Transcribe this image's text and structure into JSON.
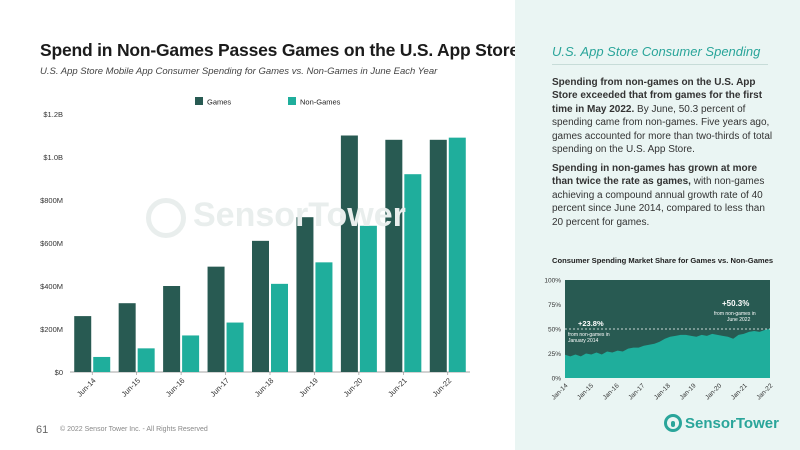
{
  "slide": {
    "title": "Spend in Non-Games Passes Games on the U.S. App Store",
    "subtitle": "U.S. App Store Mobile App Consumer Spending for Games vs. Non-Games in June Each Year",
    "page_number": "61",
    "copyright": "© 2022 Sensor Tower Inc. - All Rights Reserved",
    "watermark": "SensorTower",
    "logo_text": "SensorTower"
  },
  "sidebar": {
    "heading": "U.S. App Store Consumer Spending",
    "p1_bold": "Spending from non-games on the U.S. App Store exceeded that from games for the first time in May 2022.",
    "p1_rest": " By June, 50.3 percent of spending came from non-games. Five years ago, games accounted for more than two-thirds of total spending on the U.S. App Store.",
    "p2_bold": "Spending in non-games has grown at more than twice the rate as games,",
    "p2_rest": " with non-games achieving a compound annual growth rate of 40 percent since June 2014, compared to less than 20 percent for games."
  },
  "colors": {
    "games": "#285a52",
    "non_games": "#1fae9c",
    "mini_bg": "#285a52",
    "mini_area": "#1fae9c",
    "accent": "#2aa59a"
  },
  "chart_data": [
    {
      "type": "bar",
      "title": "Spend in Non-Games Passes Games on the U.S. App Store",
      "categories": [
        "Jun-14",
        "Jun-15",
        "Jun-16",
        "Jun-17",
        "Jun-18",
        "Jun-19",
        "Jun-20",
        "Jun-21",
        "Jun-22"
      ],
      "series": [
        {
          "name": "Games",
          "values": [
            0.26,
            0.32,
            0.4,
            0.49,
            0.61,
            0.72,
            1.1,
            1.08,
            1.08
          ]
        },
        {
          "name": "Non-Games",
          "values": [
            0.07,
            0.11,
            0.17,
            0.23,
            0.41,
            0.51,
            0.68,
            0.92,
            1.09
          ]
        }
      ],
      "unit": "USD billions",
      "ylim": [
        0,
        1.2
      ],
      "yticks": [
        0,
        0.2,
        0.4,
        0.6,
        0.8,
        1.0,
        1.2
      ],
      "ytick_labels": [
        "$0",
        "$200M",
        "$400M",
        "$600M",
        "$800M",
        "$1.0B",
        "$1.2B"
      ],
      "legend_position": "top-center",
      "grid": false
    },
    {
      "type": "area",
      "title": "Consumer Spending Market Share for Games vs. Non-Games",
      "x_labels": [
        "Jan-14",
        "Jan-15",
        "Jan-16",
        "Jan-17",
        "Jan-18",
        "Jan-19",
        "Jan-20",
        "Jan-21",
        "Jan-22"
      ],
      "non_games_share": [
        23.8,
        22,
        24,
        22,
        25,
        24,
        26,
        24,
        27,
        26,
        28,
        27,
        30,
        31,
        31,
        33,
        34,
        35,
        37,
        40,
        42,
        43,
        44,
        44,
        43,
        42,
        44,
        43,
        45,
        44,
        43,
        42,
        40,
        44,
        45,
        47,
        48,
        47,
        49,
        50.3
      ],
      "ylim": [
        0,
        100
      ],
      "yticks": [
        0,
        25,
        50,
        75,
        100
      ],
      "ytick_labels": [
        "0%",
        "25%",
        "50%",
        "75%",
        "100%"
      ],
      "annotations": [
        {
          "value": "+23.8%",
          "caption_line1": "from non-games in",
          "caption_line2": "January 2014"
        },
        {
          "value": "+50.3%",
          "caption_line1": "from non-games in",
          "caption_line2": "June 2022"
        }
      ]
    }
  ]
}
